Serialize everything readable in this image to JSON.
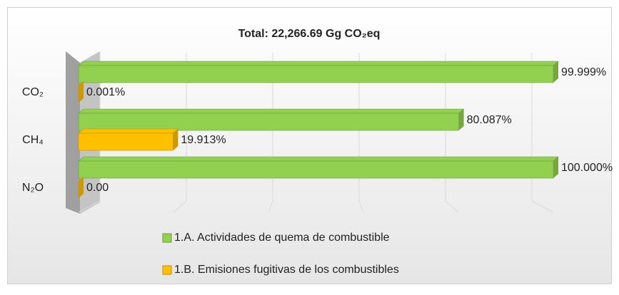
{
  "chart_data": {
    "type": "bar3d_horizontal",
    "title": "Total: 22,266.69 Gg CO₂eq",
    "categories": [
      "CO₂",
      "CH₄",
      "N₂O"
    ],
    "series": [
      {
        "name": "1.A. Actividades de quema de combustible",
        "color": "#92d050",
        "values": [
          99.999,
          80.087,
          100.0
        ],
        "value_labels": [
          "99.999%",
          "80.087%",
          "100.000%"
        ]
      },
      {
        "name": "1.B. Emisiones fugitivas de los combustibles",
        "color": "#ffc000",
        "values": [
          0.001,
          19.913,
          0
        ],
        "value_labels": [
          "0.001%",
          "19.913%",
          "0.00"
        ]
      }
    ],
    "xlim": [
      0,
      100
    ],
    "xticks": [
      0,
      20,
      40,
      60,
      80,
      100
    ],
    "grid": true
  }
}
